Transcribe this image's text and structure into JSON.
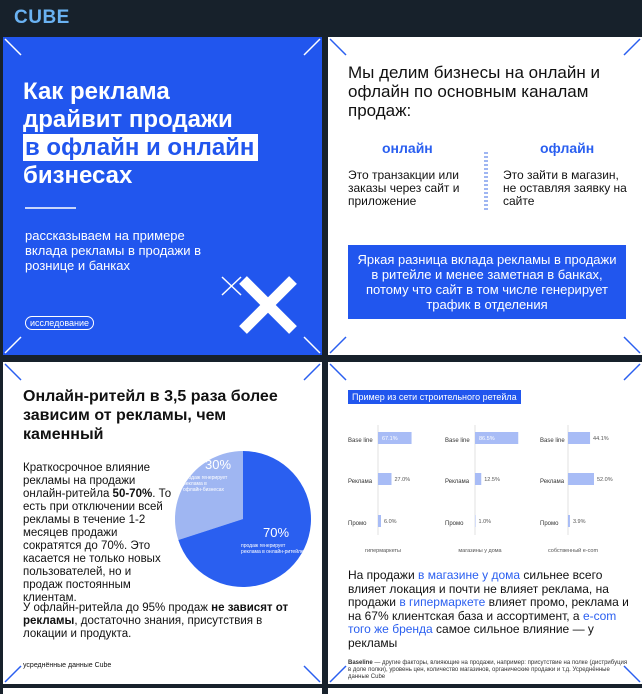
{
  "header": {
    "title": "CUBE"
  },
  "cards": [
    {
      "title_lines": [
        "Как реклама",
        "драйвит продажи"
      ],
      "highlight": "в офлайн и онлайн",
      "title_end": "бизнесах",
      "subtitle": "рассказываем на примере вклада рекламы в продажи в рознице и банках",
      "tag": "исследование"
    },
    {
      "intro": "Мы делим бизнесы на онлайн и офлайн по основным каналам продаж:",
      "columns": [
        {
          "label": "онлайн",
          "text": "Это транзакции или заказы через сайт и приложение"
        },
        {
          "label": "офлайн",
          "text": "Это зайти в магазин, не оставляя заявку на сайте"
        }
      ],
      "callout": "Яркая разница вклада рекламы в продажи в ритейле и менее заметная в банках, потому что сайт в том числе генерирует трафик в отделения"
    },
    {
      "title": "Онлайн-ритейл в 3,5 раза более зависим от рекламы, чем каменный",
      "p1": [
        "Краткосрочное влияние рекламы на продажи онлайн-ритейла ",
        "50-70%",
        ". То есть при отключении всей рекламы в течение 1-2 месяцев продажи сократятся до 70%. Это касается не только новых пользователей, но и продаж постоянным клиентам."
      ],
      "p2": [
        "У офлайн-ритейла до 95% продаж ",
        "не зависят от рекламы",
        ", достаточно знания, присутствия в локации и продукта."
      ],
      "pie": {
        "type": "pie",
        "slices": [
          {
            "value": 30,
            "value_label": "30%",
            "text": "продаж генерирует реклама в офлайн-бизнесах",
            "color": "#9fb6f2"
          },
          {
            "value": 70,
            "value_label": "70%",
            "text": "продаж генерирует реклама в онлайн-ритейле",
            "color": "#2a5ff0"
          }
        ]
      },
      "footnote": "усреднённые данные Cube"
    },
    {
      "chart": {
        "type": "bar",
        "title": "Пример из сети строительного ретейла",
        "categories": [
          "Base line",
          "Реклама",
          "Промо"
        ],
        "xlim": [
          0,
          100
        ],
        "color": "#a8bcf6",
        "groups": [
          {
            "name": "гипермаркеты",
            "values": [
              67.1,
              27.0,
              6.0
            ],
            "value_labels": [
              "67.1%",
              "27.0%",
              "6.0%"
            ]
          },
          {
            "name": "магазины у дома",
            "values": [
              86.5,
              12.5,
              1.0
            ],
            "value_labels": [
              "86.5%",
              "12.5%",
              "1.0%"
            ]
          },
          {
            "name": "собственный e-com",
            "values": [
              44.1,
              52.0,
              3.9
            ],
            "value_labels": [
              "44.1%",
              "52.0%",
              "3.9%"
            ]
          }
        ]
      },
      "body": [
        "На продажи ",
        "в магазине у дома",
        " сильнее всего влияет локация и почти не влияет реклама, на продажи ",
        "в гипермаркете",
        " влияет промо, реклама и на 67% клиентская база и ассортимент, а ",
        "e-com того же бренда",
        " самое сильное влияние — у рекламы"
      ],
      "footnote": [
        "Baseline",
        " — другие факторы, влияющие на продажи, например: присутствие на полке (дистрибуция в доле полки), уровень цен, количество магазинов, органические продажи и т.д. Усреднённые данные Cube"
      ]
    }
  ]
}
